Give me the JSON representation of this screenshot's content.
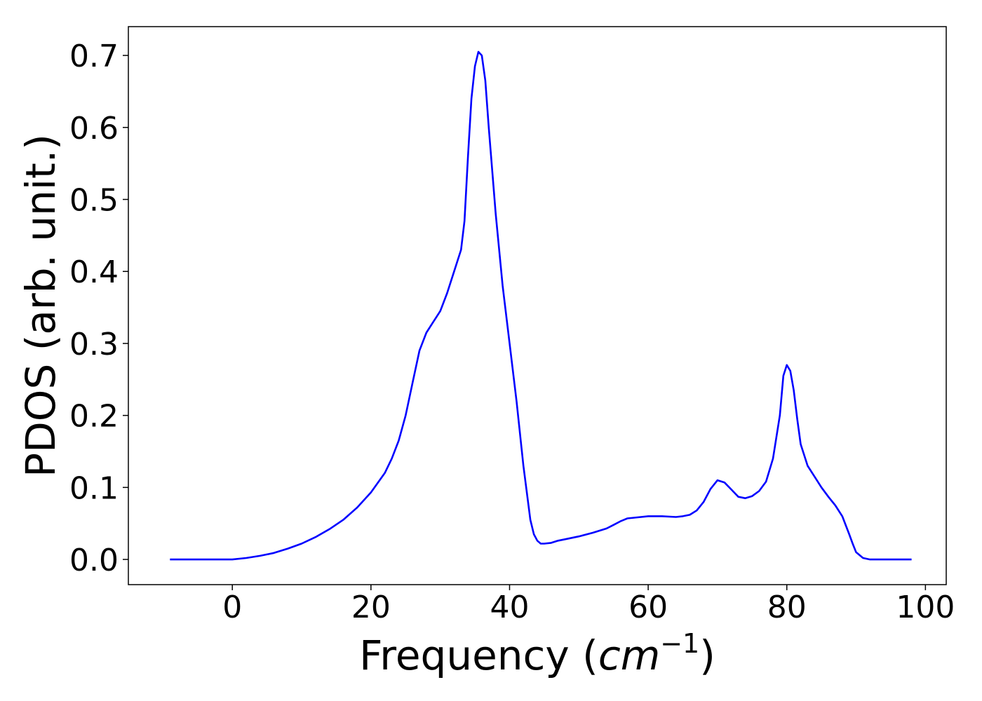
{
  "chart_data": {
    "type": "line",
    "title": "",
    "xlabel": "Frequency (",
    "xlabel_math": {
      "base": "cm",
      "sup": "−1"
    },
    "xlabel_close": ")",
    "ylabel": "PDOS (arb. unit.)",
    "xlim": [
      -15,
      103
    ],
    "ylim": [
      -0.035,
      0.74
    ],
    "xticks": [
      0,
      20,
      40,
      60,
      80,
      100
    ],
    "xtick_labels": [
      "0",
      "20",
      "40",
      "60",
      "80",
      "100"
    ],
    "yticks": [
      0.0,
      0.1,
      0.2,
      0.3,
      0.4,
      0.5,
      0.6,
      0.7
    ],
    "ytick_labels": [
      "0.0",
      "0.1",
      "0.2",
      "0.3",
      "0.4",
      "0.5",
      "0.6",
      "0.7"
    ],
    "grid": false,
    "legend": "none",
    "series": [
      {
        "color": "#0000ff",
        "x": [
          -9,
          -5,
          0,
          2,
          4,
          6,
          8,
          10,
          12,
          14,
          16,
          18,
          20,
          22,
          23,
          24,
          25,
          26,
          27,
          28,
          29,
          30,
          31,
          32,
          33,
          33.5,
          34,
          34.5,
          35,
          35.5,
          36,
          36.5,
          37,
          38,
          39,
          40,
          41,
          42,
          43,
          43.5,
          44,
          44.5,
          45,
          46,
          47,
          48,
          50,
          52,
          54,
          55,
          56,
          57,
          58,
          60,
          62,
          64,
          65,
          66,
          67,
          68,
          69,
          70,
          71,
          72,
          73,
          74,
          75,
          76,
          77,
          78,
          79,
          79.5,
          80,
          80.5,
          81,
          81.5,
          82,
          83,
          84,
          85,
          86,
          87,
          88,
          89,
          89.5,
          90,
          91,
          92,
          95,
          98
        ],
        "y": [
          0,
          0,
          0,
          0.002,
          0.005,
          0.009,
          0.015,
          0.022,
          0.031,
          0.042,
          0.055,
          0.072,
          0.093,
          0.12,
          0.14,
          0.165,
          0.2,
          0.245,
          0.29,
          0.315,
          0.33,
          0.345,
          0.37,
          0.4,
          0.43,
          0.47,
          0.56,
          0.64,
          0.685,
          0.705,
          0.7,
          0.665,
          0.6,
          0.48,
          0.38,
          0.3,
          0.22,
          0.13,
          0.055,
          0.035,
          0.026,
          0.022,
          0.022,
          0.023,
          0.026,
          0.028,
          0.032,
          0.037,
          0.043,
          0.048,
          0.053,
          0.057,
          0.058,
          0.06,
          0.06,
          0.059,
          0.06,
          0.062,
          0.068,
          0.08,
          0.098,
          0.11,
          0.107,
          0.097,
          0.087,
          0.085,
          0.088,
          0.095,
          0.108,
          0.14,
          0.2,
          0.255,
          0.27,
          0.262,
          0.235,
          0.195,
          0.16,
          0.13,
          0.115,
          0.1,
          0.087,
          0.075,
          0.06,
          0.035,
          0.022,
          0.01,
          0.002,
          0,
          0,
          0
        ]
      }
    ]
  }
}
